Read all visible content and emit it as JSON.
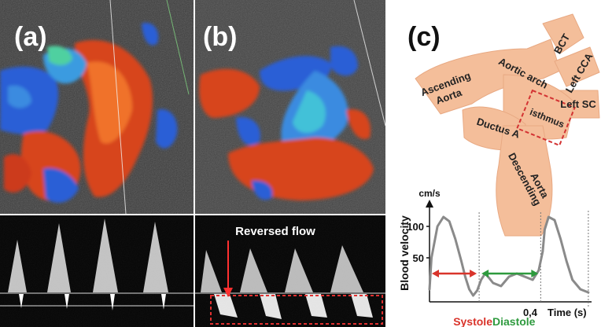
{
  "panels": {
    "a": {
      "label": "(a)"
    },
    "b": {
      "label": "(b)",
      "annotation": "Reversed flow"
    },
    "c": {
      "label": "(c)"
    }
  },
  "anatomy": {
    "ascending_aorta_line1": "Ascending",
    "ascending_aorta_line2": "Aorta",
    "aortic_arch": "Aortic arch",
    "bct": "BCT",
    "left_cca": "Left CCA",
    "left_sc": "Left SC",
    "isthmus": "isthmus",
    "ductus_a": "Ductus A",
    "descending_aorta_line1": "Descending",
    "descending_aorta_line2": "Aorta"
  },
  "chart_data": {
    "type": "line",
    "ylabel": "Blood velocity",
    "yunit": "cm/s",
    "xlabel": "Time (s)",
    "x_tick_label": "0,4",
    "y_ticks": [
      50,
      100
    ],
    "ylim": [
      -20,
      140
    ],
    "xlim": [
      0,
      0.42
    ],
    "series": [
      {
        "x": [
          0.0,
          0.005,
          0.02,
          0.035,
          0.05,
          0.065,
          0.08,
          0.09,
          0.1,
          0.11,
          0.12,
          0.13,
          0.14,
          0.15,
          0.16,
          0.18,
          0.2,
          0.22,
          0.24,
          0.26,
          0.275,
          0.285,
          0.29,
          0.3,
          0.315,
          0.33,
          0.345,
          0.36,
          0.38,
          0.4
        ],
        "y": [
          0,
          50,
          100,
          115,
          108,
          80,
          45,
          20,
          0,
          -10,
          -2,
          15,
          25,
          18,
          10,
          5,
          20,
          25,
          20,
          15,
          30,
          60,
          95,
          115,
          110,
          80,
          45,
          15,
          0,
          -5
        ]
      }
    ],
    "phase_labels": {
      "systole": "Systole",
      "diastole": "Diastole"
    },
    "systole_x": [
      0.0,
      0.125
    ],
    "diastole_x": [
      0.125,
      0.28
    ],
    "phase_arrow_y": 25,
    "phase_markers_x": [
      0.125,
      0.28
    ]
  },
  "colors": {
    "vessel": "#f4be9a",
    "isthmus_box": "#d33333",
    "systole": "#d9342b",
    "diastole": "#2e9a3e",
    "curve": "#8a8a8a",
    "doppler_red": "#e0401a",
    "doppler_blue": "#2e63d8"
  }
}
